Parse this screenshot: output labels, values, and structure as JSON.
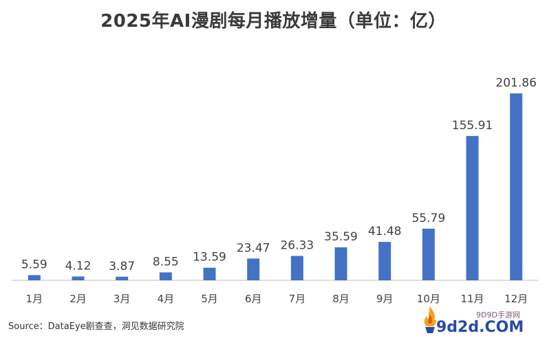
{
  "chart_data": {
    "type": "bar",
    "title": "2025年AI漫剧每月播放增量（单位：亿）",
    "categories": [
      "1月",
      "2月",
      "3月",
      "4月",
      "5月",
      "6月",
      "7月",
      "8月",
      "9月",
      "10月",
      "11月",
      "12月"
    ],
    "values": [
      5.59,
      4.12,
      3.87,
      8.55,
      13.59,
      23.47,
      26.33,
      35.59,
      41.48,
      55.79,
      155.91,
      201.86
    ],
    "value_labels": [
      "5.59",
      "4.12",
      "3.87",
      "8.55",
      "13.59",
      "23.47",
      "26.33",
      "35.59",
      "41.48",
      "55.79",
      "155.91",
      "201.86"
    ],
    "ylim": [
      0,
      201.86
    ],
    "bar_color": "#4472c4",
    "grid": false,
    "legend": "none"
  },
  "source_text": "Source：DataEye剧查查，洞见数据研究院",
  "watermark": {
    "sub_text": "9D9D手游网",
    "main_text": "9d2d.COM"
  },
  "colors": {
    "title": "#3a3a3a",
    "labels": "#404040",
    "axis": "#bfbfbf"
  }
}
